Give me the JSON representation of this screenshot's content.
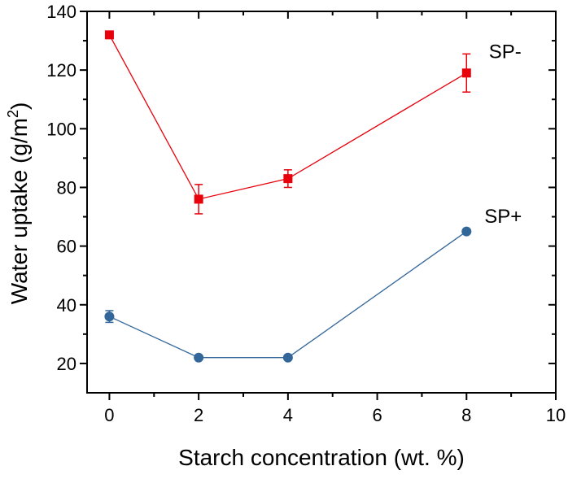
{
  "chart_data": {
    "type": "line",
    "title": "",
    "xlabel": "Starch concentration (wt. %)",
    "ylabel_main": "Water uptake (g/m",
    "ylabel_sup": "2",
    "ylabel_end": ")",
    "xlim": [
      -0.5,
      10
    ],
    "ylim": [
      10,
      140
    ],
    "xticks": [
      0,
      2,
      4,
      6,
      8,
      10
    ],
    "yticks": [
      20,
      40,
      60,
      80,
      100,
      120,
      140
    ],
    "grid": false,
    "series": [
      {
        "name": "SP-",
        "color": "#e8000b",
        "marker": "square",
        "x": [
          0,
          2,
          4,
          8
        ],
        "y": [
          132,
          76,
          83,
          119
        ],
        "err": [
          0,
          5,
          3,
          6.5
        ],
        "label_pos": [
          8.5,
          124
        ]
      },
      {
        "name": "SP+",
        "color": "#336699",
        "marker": "circle",
        "x": [
          0,
          2,
          4,
          8
        ],
        "y": [
          36,
          22,
          22,
          65
        ],
        "err": [
          2,
          0,
          0,
          0
        ],
        "label_pos": [
          8.4,
          68
        ]
      }
    ]
  }
}
